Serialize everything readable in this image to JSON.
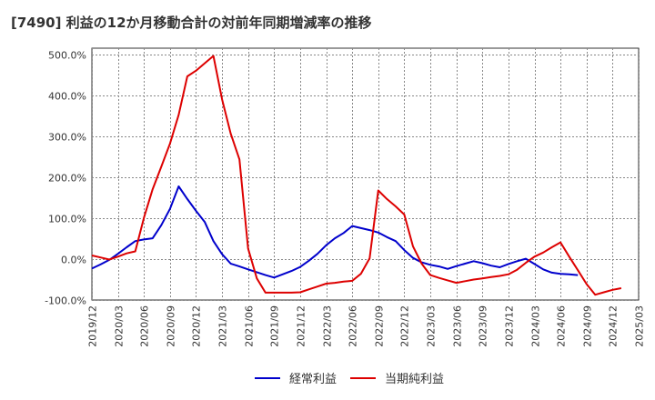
{
  "chart_data": {
    "type": "line",
    "title": "[7490]  利益の12か月移動合計の対前年同期増減率の推移",
    "xlabel": "",
    "ylabel": "",
    "ylim": [
      -100,
      500
    ],
    "yticks": [
      -100,
      0,
      100,
      200,
      300,
      400,
      500
    ],
    "ytick_labels": [
      "-100.0%",
      "0.0%",
      "100.0%",
      "200.0%",
      "300.0%",
      "400.0%",
      "500.0%"
    ],
    "xtick_labels": [
      "2019/12",
      "2020/03",
      "2020/06",
      "2020/09",
      "2020/12",
      "2021/03",
      "2021/06",
      "2021/09",
      "2021/12",
      "2022/03",
      "2022/06",
      "2022/09",
      "2022/12",
      "2023/03",
      "2023/06",
      "2023/09",
      "2023/12",
      "2024/03",
      "2024/06",
      "2024/09",
      "2024/12",
      "2025/03"
    ],
    "grid": true,
    "legend_position": "bottom",
    "series": [
      {
        "name": "経常利益",
        "color": "#0000cc",
        "points": [
          [
            0,
            -24
          ],
          [
            1,
            -14
          ],
          [
            2,
            -3
          ],
          [
            3,
            12
          ],
          [
            4,
            28
          ],
          [
            5,
            43
          ],
          [
            6,
            47
          ],
          [
            7,
            50
          ],
          [
            8,
            82
          ],
          [
            9,
            122
          ],
          [
            10,
            177
          ],
          [
            11,
            146
          ],
          [
            12,
            117
          ],
          [
            13,
            90
          ],
          [
            14,
            43
          ],
          [
            15,
            11
          ],
          [
            16,
            -12
          ],
          [
            17,
            -19
          ],
          [
            18,
            -26
          ],
          [
            19,
            -33
          ],
          [
            20,
            -40
          ],
          [
            21,
            -46
          ],
          [
            22,
            -38
          ],
          [
            23,
            -30
          ],
          [
            24,
            -20
          ],
          [
            25,
            -5
          ],
          [
            26,
            12
          ],
          [
            27,
            33
          ],
          [
            28,
            50
          ],
          [
            29,
            63
          ],
          [
            30,
            80
          ],
          [
            31,
            75
          ],
          [
            32,
            70
          ],
          [
            33,
            64
          ],
          [
            34,
            53
          ],
          [
            35,
            43
          ],
          [
            36,
            21
          ],
          [
            37,
            2
          ],
          [
            38,
            -9
          ],
          [
            39,
            -15
          ],
          [
            40,
            -19
          ],
          [
            41,
            -25
          ],
          [
            42,
            -18
          ],
          [
            43,
            -12
          ],
          [
            44,
            -6
          ],
          [
            45,
            -11
          ],
          [
            46,
            -17
          ],
          [
            47,
            -21
          ],
          [
            48,
            -13
          ],
          [
            49,
            -6
          ],
          [
            50,
            0
          ],
          [
            51,
            -13
          ],
          [
            52,
            -26
          ],
          [
            53,
            -34
          ],
          [
            54,
            -37
          ],
          [
            55,
            -38
          ],
          [
            56,
            -40
          ]
        ]
      },
      {
        "name": "当期純利益",
        "color": "#dd0000",
        "points": [
          [
            0,
            8
          ],
          [
            1,
            3
          ],
          [
            2,
            -2
          ],
          [
            3,
            5
          ],
          [
            4,
            13
          ],
          [
            5,
            18
          ],
          [
            6,
            100
          ],
          [
            7,
            170
          ],
          [
            8,
            225
          ],
          [
            9,
            282
          ],
          [
            10,
            352
          ],
          [
            11,
            446
          ],
          [
            12,
            460
          ],
          [
            13,
            478
          ],
          [
            14,
            496
          ],
          [
            15,
            390
          ],
          [
            16,
            306
          ],
          [
            17,
            243
          ],
          [
            18,
            25
          ],
          [
            19,
            -48
          ],
          [
            20,
            -83
          ],
          [
            21,
            -83
          ],
          [
            22,
            -83
          ],
          [
            23,
            -83
          ],
          [
            24,
            -82
          ],
          [
            25,
            -75
          ],
          [
            26,
            -68
          ],
          [
            27,
            -61
          ],
          [
            28,
            -59
          ],
          [
            29,
            -56
          ],
          [
            30,
            -54
          ],
          [
            31,
            -37
          ],
          [
            32,
            1
          ],
          [
            33,
            167
          ],
          [
            34,
            146
          ],
          [
            35,
            128
          ],
          [
            36,
            108
          ],
          [
            37,
            30
          ],
          [
            38,
            -12
          ],
          [
            39,
            -40
          ],
          [
            40,
            -47
          ],
          [
            41,
            -53
          ],
          [
            42,
            -59
          ],
          [
            43,
            -55
          ],
          [
            44,
            -51
          ],
          [
            45,
            -48
          ],
          [
            46,
            -45
          ],
          [
            47,
            -42
          ],
          [
            48,
            -38
          ],
          [
            49,
            -27
          ],
          [
            50,
            -10
          ],
          [
            51,
            5
          ],
          [
            52,
            15
          ],
          [
            53,
            28
          ],
          [
            54,
            40
          ],
          [
            55,
            5
          ],
          [
            56,
            -28
          ],
          [
            57,
            -62
          ],
          [
            58,
            -88
          ],
          [
            59,
            -82
          ],
          [
            60,
            -76
          ],
          [
            61,
            -72
          ]
        ]
      }
    ]
  }
}
